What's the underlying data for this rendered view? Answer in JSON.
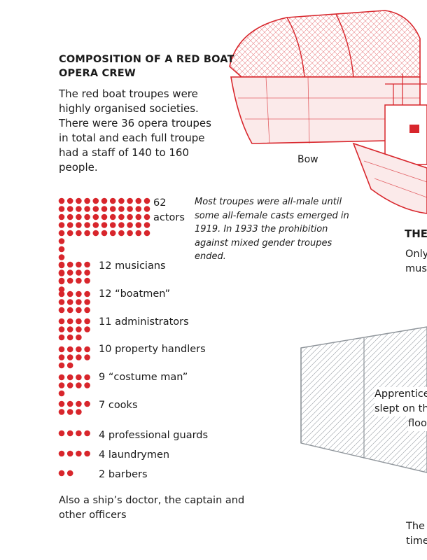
{
  "title": "COMPOSITION OF A RED BOAT OPERA CREW",
  "intro": "The red boat troupes were highly organised societies. There were 36 opera troupes in total and each full troupe had a staff of 140 to 160 people.",
  "note": "Most troupes were all-male until some all-female casts emerged in 1919. In 1933 the prohibition against mixed gender troupes ended.",
  "footer": "Also a ship’s doctor, the captain and other officers",
  "colors": {
    "dot": "#d8262c",
    "illustration": "#d8262c"
  },
  "chart_data": {
    "type": "dot-matrix",
    "unit": "one dot = one person",
    "categories": [
      "actors",
      "musicians",
      "“boatmen”",
      "administrators",
      "property handlers",
      "“costume man”",
      "cooks",
      "professional guards",
      "laundrymen",
      "barbers"
    ],
    "values": [
      62,
      12,
      12,
      11,
      10,
      9,
      7,
      4,
      4,
      2
    ],
    "labels": [
      {
        "count": "62",
        "text": "actors"
      },
      {
        "count": "12",
        "text": "musicians"
      },
      {
        "count": "12",
        "text": "“boatmen”"
      },
      {
        "count": "11",
        "text": "administrators"
      },
      {
        "count": "10",
        "text": "property handlers"
      },
      {
        "count": "9",
        "text": "“costume man”"
      },
      {
        "count": "7",
        "text": "cooks"
      },
      {
        "count": "4",
        "text": "professional guards"
      },
      {
        "count": "4",
        "text": "laundrymen"
      },
      {
        "count": "2",
        "text": "barbers"
      }
    ]
  },
  "illustration": {
    "bow_caption": "Bow",
    "cut_heading": "THE",
    "cut_text1_line1": "Only",
    "cut_text1_line2": "mus",
    "cut_text2_line1": "Apprentice",
    "cut_text2_line2": "slept on th",
    "cut_text2_line3": "floo",
    "cut_text3_line1": "The",
    "cut_text3_line2": "time"
  }
}
